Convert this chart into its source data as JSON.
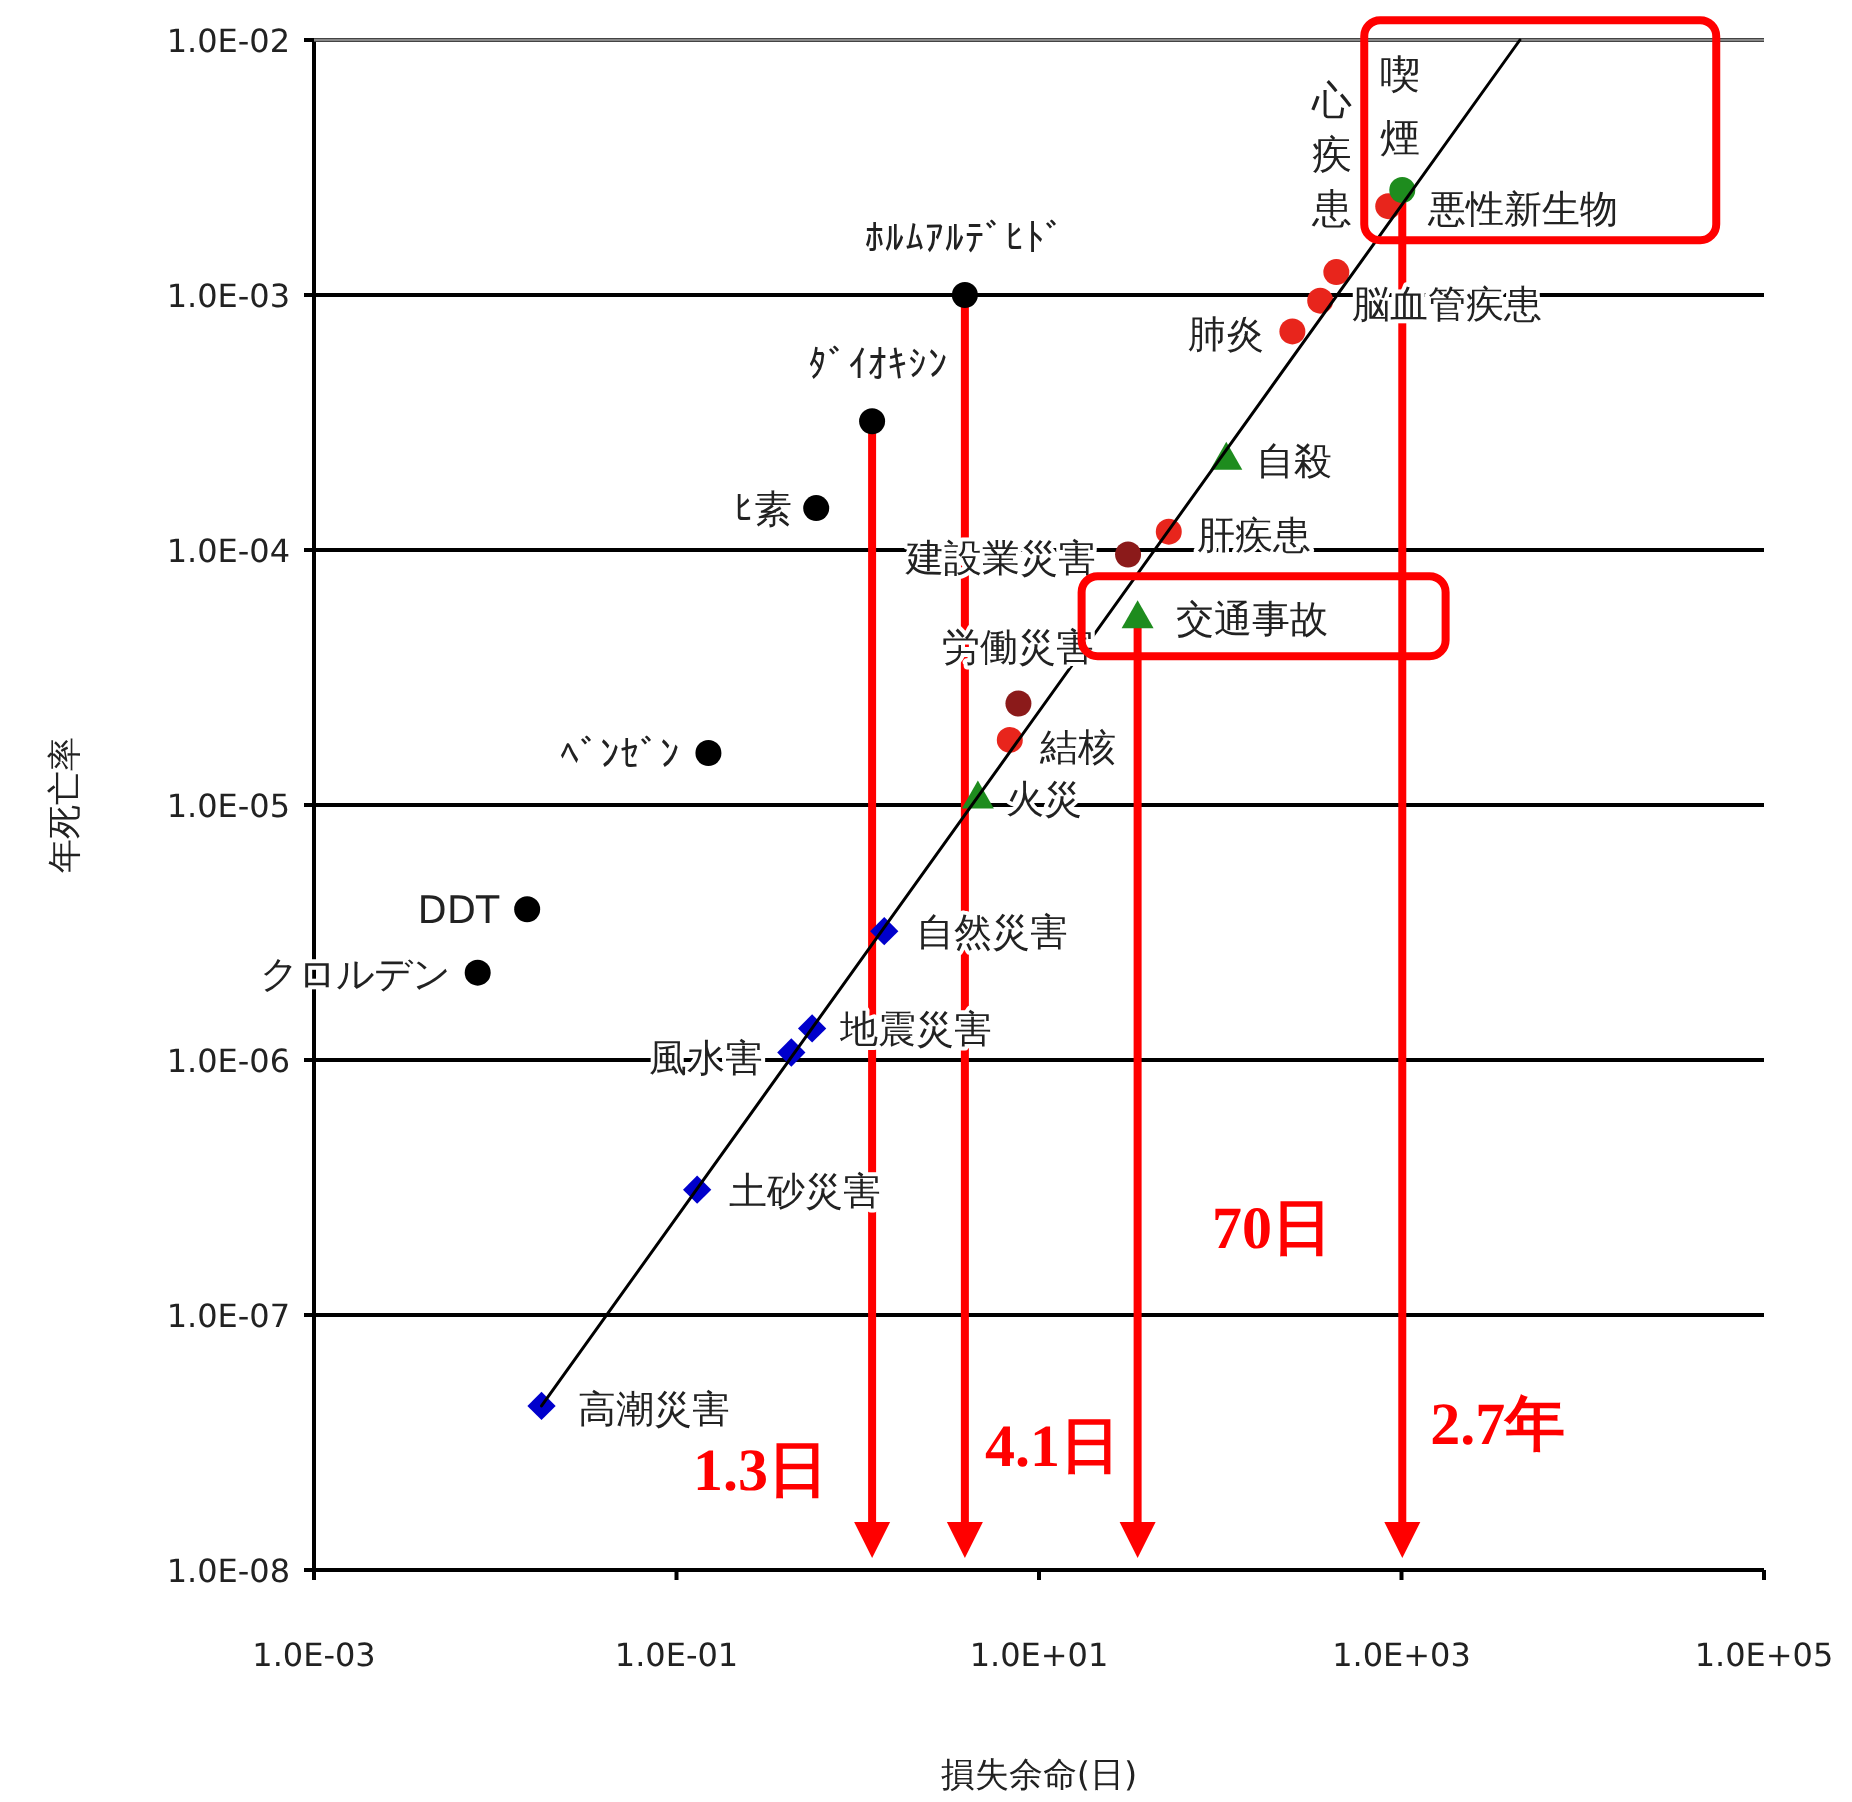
{
  "chart_data": {
    "type": "scatter",
    "xlabel": "損失余命(日)",
    "ylabel": "年死亡率",
    "log": "xy",
    "grid": "y",
    "xlim": [
      0.001,
      100000
    ],
    "ylim": [
      1e-08,
      0.01
    ],
    "xticks": [
      {
        "value": 0.001,
        "label": "1.0E-03"
      },
      {
        "value": 0.1,
        "label": "1.0E-01"
      },
      {
        "value": 10,
        "label": "1.0E+01"
      },
      {
        "value": 1000,
        "label": "1.0E+03"
      },
      {
        "value": 100000,
        "label": "1.0E+05"
      }
    ],
    "yticks": [
      {
        "value": 1e-08,
        "label": "1.0E-08"
      },
      {
        "value": 1e-07,
        "label": "1.0E-07"
      },
      {
        "value": 1e-06,
        "label": "1.0E-06"
      },
      {
        "value": 1e-05,
        "label": "1.0E-05"
      },
      {
        "value": 0.0001,
        "label": "1.0E-04"
      },
      {
        "value": 0.001,
        "label": "1.0E-03"
      },
      {
        "value": 0.01,
        "label": "1.0E-02"
      }
    ],
    "series": [
      {
        "type": "line",
        "color": "#000000",
        "marker": "none",
        "x": [
          0.018,
          4500
        ],
        "values": [
          4.4e-08,
          0.01
        ]
      },
      {
        "color": "#000000",
        "marker": "circle",
        "x": [
          3.9,
          1.2,
          0.59,
          0.15,
          0.015,
          0.008
        ],
        "values": [
          0.001,
          0.00032,
          0.000146,
          1.6e-05,
          3.9e-06,
          2.2e-06
        ]
      },
      {
        "color": "#0000cc",
        "marker": "diamond",
        "x": [
          1.4,
          0.56,
          0.43,
          0.13,
          0.018
        ],
        "values": [
          3.2e-06,
          1.33e-06,
          1.07e-06,
          3.1e-07,
          4.4e-08
        ]
      },
      {
        "color": "#e8251c",
        "marker": "circle",
        "x": [
          6.9,
          52,
          250,
          356,
          437,
          845
        ],
        "values": [
          1.8e-05,
          0.000118,
          0.00072,
          0.00095,
          0.00123,
          0.00223
        ]
      },
      {
        "color": "#8b1a1a",
        "marker": "circle",
        "x": [
          31,
          7.7
        ],
        "values": [
          9.6e-05,
          2.5e-05
        ]
      },
      {
        "color": "#1e8c1e",
        "marker": "circle",
        "x": [
          1010
        ],
        "values": [
          0.00258
        ]
      },
      {
        "color": "#1e8c1e",
        "marker": "triangle",
        "x": [
          108,
          35,
          4.6
        ],
        "values": [
          0.00023,
          5.5e-05,
          1.08e-05
        ]
      }
    ],
    "annotations": [
      {
        "text": "ﾎﾙﾑｱﾙﾃﾞﾋﾄﾞ",
        "x": 3.9,
        "y": 0.001
      },
      {
        "text": "ﾀﾞｲｵｷｼﾝ",
        "x": 1.2,
        "y": 0.00032
      },
      {
        "text": "ﾋ素",
        "x": 0.59,
        "y": 0.000146
      },
      {
        "text": "ﾍﾞﾝｾﾞﾝ",
        "x": 0.15,
        "y": 1.6e-05
      },
      {
        "text": "DDT",
        "x": 0.015,
        "y": 3.9e-06
      },
      {
        "text": "クロルデン",
        "x": 0.008,
        "y": 2.2e-06
      },
      {
        "text": "自然災害",
        "x": 1.4,
        "y": 3.2e-06
      },
      {
        "text": "地震災害",
        "x": 0.56,
        "y": 1.33e-06
      },
      {
        "text": "風水害",
        "x": 0.43,
        "y": 1.07e-06
      },
      {
        "text": "土砂災害",
        "x": 0.13,
        "y": 3.1e-07
      },
      {
        "text": "高潮災害",
        "x": 0.018,
        "y": 4.4e-08
      },
      {
        "text": "結核",
        "x": 6.9,
        "y": 1.8e-05
      },
      {
        "text": "肝疾患",
        "x": 52,
        "y": 0.000118
      },
      {
        "text": "肺炎",
        "x": 250,
        "y": 0.00072
      },
      {
        "text": "脳血管疾患",
        "x": 356,
        "y": 0.00095
      },
      {
        "text": "心疾患",
        "x": 437,
        "y": 0.00123
      },
      {
        "text": "悪性新生物",
        "x": 845,
        "y": 0.00223
      },
      {
        "text": "喫煙",
        "x": 1010,
        "y": 0.00258
      },
      {
        "text": "建設業災害",
        "x": 31,
        "y": 9.6e-05
      },
      {
        "text": "労働災害",
        "x": 7.7,
        "y": 2.5e-05
      },
      {
        "text": "自殺",
        "x": 108,
        "y": 0.00023
      },
      {
        "text": "交通事故",
        "x": 35,
        "y": 5.5e-05
      },
      {
        "text": "火災",
        "x": 4.6,
        "y": 1.08e-05
      },
      {
        "text": "1.3日",
        "x": 1.2,
        "y": 0.00032
      },
      {
        "text": "4.1日",
        "x": 3.9,
        "y": 0.001
      },
      "70日",
      {
        "text": "2.7年",
        "x": 1010,
        "y": 0.00258
      }
    ]
  }
}
